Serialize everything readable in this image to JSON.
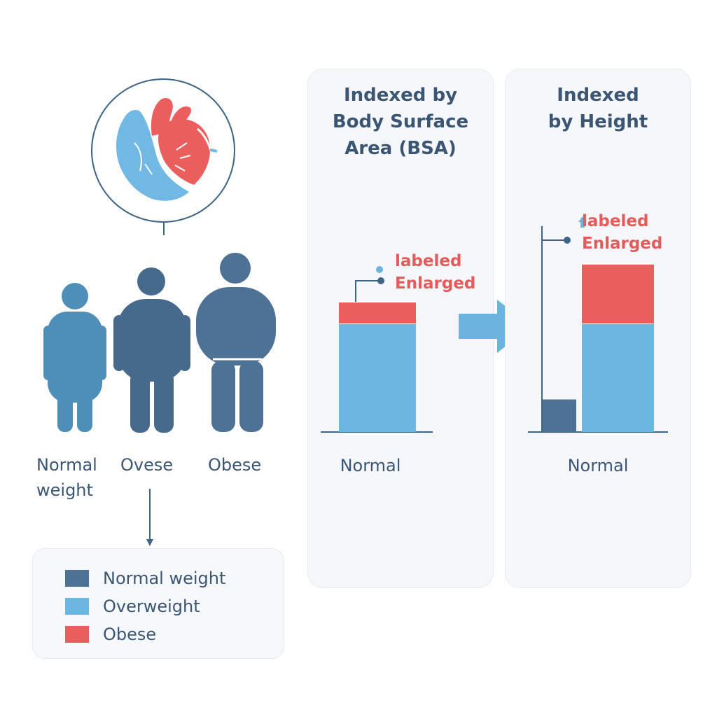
{
  "people": {
    "labels": [
      {
        "text": "Normal\nweight"
      },
      {
        "text": "Ovese"
      },
      {
        "text": "Obese"
      }
    ]
  },
  "legend": {
    "items": [
      {
        "label": "Normal weight",
        "color": "#4e7295"
      },
      {
        "label": "Overweight",
        "color": "#6db6e1"
      },
      {
        "label": "Obese",
        "color": "#ea5e5e"
      }
    ]
  },
  "colors": {
    "normal": "#4e7295",
    "overweight": "#6db6e1",
    "obese": "#ea5e5e",
    "arrow": "#6cb3e0",
    "text": "#3b5672"
  },
  "chart_data": [
    {
      "type": "bar",
      "title": "Indexed by\nBody Surface\nArea (BSA)",
      "categories": [
        "Normal"
      ],
      "series": [
        {
          "name": "Overweight",
          "values": [
            100
          ]
        },
        {
          "name": "Obese",
          "values": [
            20
          ]
        }
      ],
      "annotation": "labeled\nEnlarged"
    },
    {
      "type": "bar",
      "title": "Indexed\nby Height",
      "categories": [
        "Normal"
      ],
      "series": [
        {
          "name": "Normal weight",
          "values": [
            30
          ]
        },
        {
          "name": "Overweight",
          "values": [
            100
          ]
        },
        {
          "name": "Obese",
          "values": [
            55
          ]
        }
      ],
      "annotation": "labeled\nEnlarged"
    }
  ]
}
